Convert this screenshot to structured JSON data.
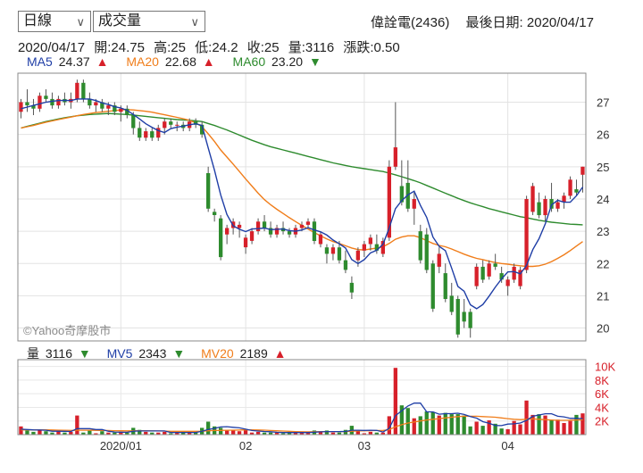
{
  "header": {
    "period_select": "日線",
    "indicator_select": "成交量",
    "stock_title": "偉詮電(2436)",
    "last_date_label": "最後日期: 2020/04/17"
  },
  "quote": {
    "date": "2020/04/17",
    "open": "開:24.75",
    "high": "高:25",
    "low": "低:24.2",
    "close": "收:25",
    "volume": "量:3116",
    "change": "漲跌:0.50"
  },
  "ma_legend": {
    "ma5_label": "MA5",
    "ma5_value": "24.37",
    "ma5_arrow": "▲",
    "ma20_label": "MA20",
    "ma20_value": "22.68",
    "ma20_arrow": "▲",
    "ma60_label": "MA60",
    "ma60_value": "23.20",
    "ma60_arrow": "▼"
  },
  "vol_legend": {
    "vol_label": "量",
    "vol_value": "3116",
    "vol_arrow": "▼",
    "mv5_label": "MV5",
    "mv5_value": "2343",
    "mv5_arrow": "▼",
    "mv20_label": "MV20",
    "mv20_value": "2189",
    "mv20_arrow": "▲"
  },
  "watermark": "©Yahoo奇摩股市",
  "colors": {
    "up": "#d7202a",
    "down": "#2e8b2e",
    "ma5": "#1f3ea6",
    "ma20": "#f07d1a",
    "ma60": "#2e8b2e",
    "vol_axis": "#d7202a"
  },
  "chart_data": {
    "type": "candlestick",
    "price_axis": {
      "ticks": [
        20,
        21,
        22,
        23,
        24,
        25,
        26,
        27
      ],
      "ylim": [
        19.6,
        27.9
      ]
    },
    "volume_axis": {
      "tick_labels": [
        "10K",
        "8K",
        "6K",
        "4K",
        "2K"
      ],
      "tick_values": [
        10000,
        8000,
        6000,
        4000,
        2000
      ],
      "ylim": [
        0,
        11000
      ]
    },
    "x_tick_labels": [
      {
        "index": 16,
        "label": "2020/01"
      },
      {
        "index": 36,
        "label": "02"
      },
      {
        "index": 55,
        "label": "03"
      },
      {
        "index": 78,
        "label": "04"
      }
    ],
    "candles": [
      [
        26.7,
        27.1,
        26.5,
        27.0
      ],
      [
        27.0,
        27.4,
        26.7,
        26.9
      ],
      [
        26.9,
        27.1,
        26.6,
        26.8
      ],
      [
        26.8,
        27.3,
        26.7,
        27.2
      ],
      [
        27.2,
        27.4,
        27.0,
        27.1
      ],
      [
        27.1,
        27.3,
        26.8,
        26.9
      ],
      [
        26.9,
        27.2,
        26.8,
        27.1
      ],
      [
        27.1,
        27.3,
        26.9,
        27.0
      ],
      [
        27.0,
        27.3,
        26.8,
        27.1
      ],
      [
        27.1,
        27.7,
        27.0,
        27.6
      ],
      [
        27.6,
        27.7,
        27.0,
        27.1
      ],
      [
        27.1,
        27.3,
        26.8,
        26.9
      ],
      [
        26.9,
        27.1,
        26.7,
        27.0
      ],
      [
        27.0,
        27.1,
        26.7,
        26.8
      ],
      [
        26.8,
        27.0,
        26.6,
        26.9
      ],
      [
        26.9,
        27.0,
        26.6,
        26.7
      ],
      [
        26.7,
        26.9,
        26.4,
        26.8
      ],
      [
        26.8,
        26.9,
        26.5,
        26.6
      ],
      [
        26.6,
        26.7,
        26.0,
        26.2
      ],
      [
        26.2,
        26.4,
        25.8,
        25.9
      ],
      [
        25.9,
        26.2,
        25.8,
        26.1
      ],
      [
        26.1,
        26.2,
        25.8,
        25.9
      ],
      [
        25.9,
        26.3,
        25.8,
        26.2
      ],
      [
        26.2,
        26.5,
        26.0,
        26.4
      ],
      [
        26.4,
        26.5,
        26.2,
        26.3
      ],
      [
        26.3,
        26.4,
        26.1,
        26.3
      ],
      [
        26.3,
        26.4,
        26.1,
        26.2
      ],
      [
        26.2,
        26.5,
        26.1,
        26.4
      ],
      [
        26.4,
        26.5,
        26.2,
        26.3
      ],
      [
        26.3,
        26.4,
        25.9,
        26.0
      ],
      [
        24.8,
        25.0,
        23.6,
        23.7
      ],
      [
        23.6,
        23.7,
        23.3,
        23.5
      ],
      [
        23.4,
        23.5,
        22.1,
        22.2
      ],
      [
        22.9,
        23.2,
        22.6,
        23.1
      ],
      [
        23.1,
        23.4,
        22.9,
        23.3
      ],
      [
        23.1,
        23.3,
        22.8,
        23.2
      ],
      [
        22.5,
        22.9,
        22.3,
        22.8
      ],
      [
        22.7,
        23.1,
        22.6,
        23.0
      ],
      [
        23.0,
        23.4,
        22.9,
        23.3
      ],
      [
        23.3,
        23.5,
        23.0,
        23.1
      ],
      [
        23.1,
        23.3,
        22.8,
        22.9
      ],
      [
        22.9,
        23.2,
        22.8,
        23.1
      ],
      [
        23.1,
        23.3,
        22.9,
        23.0
      ],
      [
        23.0,
        23.1,
        22.8,
        22.9
      ],
      [
        22.9,
        23.2,
        22.8,
        23.1
      ],
      [
        23.1,
        23.3,
        23.0,
        23.2
      ],
      [
        23.2,
        23.4,
        23.1,
        23.3
      ],
      [
        23.3,
        23.4,
        22.6,
        22.7
      ],
      [
        22.6,
        23.0,
        22.5,
        22.9
      ],
      [
        22.5,
        22.6,
        22.0,
        22.3
      ],
      [
        22.3,
        22.6,
        22.1,
        22.5
      ],
      [
        22.5,
        22.7,
        22.0,
        22.1
      ],
      [
        22.1,
        22.4,
        21.7,
        21.8
      ],
      [
        21.4,
        21.6,
        20.9,
        21.1
      ],
      [
        22.1,
        22.5,
        21.9,
        22.4
      ],
      [
        22.4,
        22.7,
        22.2,
        22.6
      ],
      [
        22.6,
        22.9,
        22.4,
        22.8
      ],
      [
        22.6,
        22.9,
        22.3,
        22.4
      ],
      [
        22.3,
        22.8,
        22.2,
        22.7
      ],
      [
        22.8,
        25.2,
        22.7,
        25.0
      ],
      [
        25.0,
        27.0,
        24.9,
        25.6
      ],
      [
        24.4,
        25.2,
        23.8,
        23.9
      ],
      [
        24.5,
        25.2,
        23.6,
        23.7
      ],
      [
        23.7,
        24.2,
        23.2,
        24.0
      ],
      [
        23.0,
        23.2,
        22.0,
        22.1
      ],
      [
        22.9,
        23.1,
        21.7,
        21.8
      ],
      [
        22.0,
        22.1,
        20.5,
        20.6
      ],
      [
        21.9,
        22.5,
        21.7,
        22.3
      ],
      [
        21.7,
        22.0,
        20.8,
        20.9
      ],
      [
        21.0,
        21.4,
        20.4,
        20.5
      ],
      [
        20.9,
        21.0,
        19.7,
        19.8
      ],
      [
        20.5,
        20.9,
        20.0,
        20.2
      ],
      [
        20.5,
        20.6,
        19.7,
        20.0
      ],
      [
        21.3,
        22.0,
        21.2,
        21.9
      ],
      [
        21.9,
        22.1,
        21.4,
        21.5
      ],
      [
        21.6,
        22.1,
        21.5,
        22.0
      ],
      [
        22.0,
        22.3,
        21.8,
        21.9
      ],
      [
        21.7,
        21.9,
        21.4,
        21.5
      ],
      [
        21.3,
        21.6,
        21.0,
        21.5
      ],
      [
        21.5,
        22.0,
        21.4,
        21.9
      ],
      [
        21.3,
        21.9,
        21.2,
        21.8
      ],
      [
        21.8,
        24.1,
        21.7,
        24.0
      ],
      [
        23.6,
        24.5,
        23.5,
        24.4
      ],
      [
        23.9,
        24.2,
        23.4,
        23.5
      ],
      [
        23.5,
        24.1,
        23.3,
        24.0
      ],
      [
        24.0,
        24.5,
        23.6,
        23.7
      ],
      [
        23.7,
        24.0,
        23.6,
        23.9
      ],
      [
        23.9,
        24.2,
        23.7,
        24.1
      ],
      [
        24.1,
        24.7,
        24.0,
        24.6
      ],
      [
        24.3,
        24.6,
        24.1,
        24.2
      ],
      [
        24.75,
        25.0,
        24.2,
        25.0
      ]
    ],
    "volume": [
      1200,
      600,
      400,
      700,
      500,
      300,
      600,
      300,
      400,
      2800,
      300,
      600,
      200,
      500,
      300,
      300,
      400,
      300,
      1000,
      700,
      400,
      300,
      300,
      400,
      200,
      400,
      300,
      500,
      300,
      1000,
      1900,
      1200,
      1000,
      700,
      600,
      500,
      800,
      300,
      400,
      300,
      300,
      300,
      200,
      400,
      300,
      300,
      300,
      600,
      400,
      600,
      300,
      300,
      700,
      1300,
      600,
      200,
      400,
      300,
      300,
      2700,
      9800,
      4300,
      3900,
      2400,
      2700,
      3400,
      3300,
      2800,
      3200,
      3000,
      3000,
      2800,
      1200,
      1900,
      1300,
      2100,
      1600,
      900,
      800,
      2000,
      1500,
      5000,
      2900,
      3000,
      2800,
      2200,
      2200,
      1700,
      2000,
      2900,
      3116
    ],
    "ma5": [
      26.8,
      26.85,
      26.9,
      26.95,
      27.0,
      27.03,
      27.05,
      27.06,
      27.05,
      27.1,
      27.1,
      27.1,
      27.05,
      26.98,
      26.93,
      26.86,
      26.82,
      26.75,
      26.62,
      26.48,
      26.33,
      26.22,
      26.12,
      26.06,
      26.18,
      26.23,
      26.26,
      26.3,
      26.33,
      26.28,
      25.58,
      24.89,
      24.13,
      23.52,
      23.17,
      23.06,
      22.99,
      23.07,
      23.08,
      23.1,
      23.05,
      23.06,
      23.07,
      23.02,
      23.0,
      23.04,
      23.11,
      23.04,
      22.98,
      22.88,
      22.73,
      22.61,
      22.48,
      22.12,
      22.0,
      22.12,
      22.33,
      22.41,
      22.6,
      23.1,
      23.7,
      23.95,
      24.13,
      24.24,
      23.8,
      23.43,
      22.82,
      22.53,
      22.4,
      21.86,
      21.29,
      21.14,
      20.72,
      20.6,
      20.73,
      20.99,
      21.27,
      21.52,
      21.74,
      21.75,
      21.68,
      21.94,
      22.43,
      22.77,
      23.23,
      23.82,
      23.96,
      23.9,
      23.9,
      24.1,
      24.37
    ],
    "ma20": [
      26.2,
      26.24,
      26.28,
      26.33,
      26.38,
      26.42,
      26.46,
      26.5,
      26.54,
      26.58,
      26.62,
      26.65,
      26.68,
      26.7,
      26.72,
      26.74,
      26.76,
      26.77,
      26.76,
      26.74,
      26.72,
      26.69,
      26.65,
      26.61,
      26.57,
      26.53,
      26.49,
      26.44,
      26.36,
      26.24,
      26.02,
      25.78,
      25.52,
      25.3,
      25.08,
      24.85,
      24.62,
      24.4,
      24.18,
      23.98,
      23.82,
      23.68,
      23.55,
      23.42,
      23.3,
      23.18,
      23.07,
      22.96,
      22.86,
      22.76,
      22.68,
      22.62,
      22.55,
      22.48,
      22.43,
      22.42,
      22.45,
      22.48,
      22.52,
      22.62,
      22.75,
      22.82,
      22.86,
      22.86,
      22.8,
      22.71,
      22.62,
      22.56,
      22.52,
      22.45,
      22.37,
      22.29,
      22.22,
      22.16,
      22.12,
      22.07,
      22.03,
      22.0,
      21.98,
      21.95,
      21.93,
      21.91,
      21.91,
      21.93,
      21.98,
      22.06,
      22.16,
      22.27,
      22.4,
      22.54,
      22.68
    ],
    "ma60": [
      26.2,
      26.25,
      26.3,
      26.35,
      26.4,
      26.44,
      26.48,
      26.52,
      26.55,
      26.58,
      26.6,
      26.62,
      26.63,
      26.64,
      26.65,
      26.64,
      26.63,
      26.62,
      26.6,
      26.58,
      26.56,
      26.54,
      26.52,
      26.5,
      26.48,
      26.46,
      26.45,
      26.44,
      26.42,
      26.4,
      26.34,
      26.28,
      26.21,
      26.14,
      26.06,
      25.98,
      25.9,
      25.82,
      25.75,
      25.68,
      25.62,
      25.57,
      25.52,
      25.47,
      25.42,
      25.37,
      25.32,
      25.27,
      25.22,
      25.17,
      25.12,
      25.08,
      25.04,
      25.0,
      24.97,
      24.94,
      24.91,
      24.88,
      24.85,
      24.8,
      24.75,
      24.69,
      24.63,
      24.57,
      24.5,
      24.42,
      24.34,
      24.26,
      24.18,
      24.1,
      24.02,
      23.95,
      23.88,
      23.82,
      23.76,
      23.7,
      23.65,
      23.6,
      23.55,
      23.5,
      23.45,
      23.42,
      23.38,
      23.34,
      23.31,
      23.28,
      23.26,
      23.24,
      23.22,
      23.21,
      23.2
    ],
    "mv5": [
      800,
      750,
      700,
      680,
      640,
      500,
      500,
      480,
      460,
      880,
      880,
      880,
      740,
      740,
      500,
      380,
      360,
      340,
      500,
      540,
      540,
      540,
      540,
      540,
      320,
      320,
      320,
      320,
      320,
      480,
      760,
      920,
      1120,
      1160,
      1080,
      1000,
      800,
      600,
      520,
      460,
      420,
      340,
      300,
      300,
      300,
      300,
      300,
      360,
      400,
      440,
      440,
      440,
      460,
      640,
      640,
      620,
      640,
      620,
      380,
      920,
      2780,
      3500,
      4200,
      4620,
      4620,
      3340,
      3340,
      3000,
      3080,
      3080,
      3140,
      2960,
      2640,
      2420,
      1900,
      1660,
      1340,
      1320,
      1540,
      1580,
      1700,
      2100,
      2700,
      2880,
      3060,
      3060,
      2700,
      2600,
      2400,
      2400,
      2343
    ],
    "mv20": [
      700,
      700,
      700,
      700,
      700,
      680,
      660,
      640,
      620,
      640,
      640,
      640,
      630,
      620,
      600,
      580,
      560,
      550,
      560,
      560,
      560,
      550,
      540,
      520,
      490,
      480,
      480,
      480,
      480,
      500,
      560,
      600,
      620,
      640,
      660,
      680,
      700,
      690,
      680,
      650,
      600,
      560,
      520,
      480,
      440,
      420,
      410,
      420,
      430,
      440,
      440,
      440,
      450,
      500,
      540,
      560,
      580,
      600,
      620,
      720,
      1150,
      1450,
      1700,
      1850,
      2000,
      2150,
      2250,
      2350,
      2450,
      2550,
      2650,
      2700,
      2700,
      2700,
      2650,
      2600,
      2550,
      2450,
      2350,
      2250,
      2200,
      2250,
      2300,
      2250,
      2200,
      2150,
      2100,
      2100,
      2120,
      2150,
      2189
    ]
  }
}
